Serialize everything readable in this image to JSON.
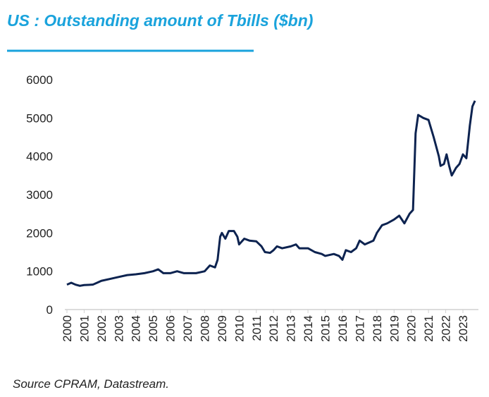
{
  "chart_data": {
    "type": "line",
    "title": "US : Outstanding amount of Tbills ($bn)",
    "source": "Source CPRAM, Datastream.",
    "x": [
      2000,
      2000.25,
      2000.5,
      2000.75,
      2001,
      2001.5,
      2001.75,
      2002,
      2002.5,
      2003,
      2003.5,
      2004,
      2004.5,
      2005,
      2005.3,
      2005.6,
      2006,
      2006.4,
      2006.8,
      2007,
      2007.5,
      2008,
      2008.3,
      2008.6,
      2008.75,
      2008.9,
      2009,
      2009.2,
      2009.4,
      2009.7,
      2009.9,
      2010,
      2010.3,
      2010.6,
      2011,
      2011.3,
      2011.5,
      2011.8,
      2012,
      2012.2,
      2012.5,
      2013,
      2013.3,
      2013.5,
      2014,
      2014.4,
      2014.8,
      2015,
      2015.5,
      2015.8,
      2016,
      2016.2,
      2016.5,
      2016.8,
      2017,
      2017.3,
      2017.8,
      2018,
      2018.3,
      2018.6,
      2019,
      2019.3,
      2019.6,
      2019.9,
      2020.1,
      2020.25,
      2020.4,
      2020.7,
      2021,
      2021.3,
      2021.6,
      2021.7,
      2021.9,
      2022.05,
      2022.2,
      2022.35,
      2022.6,
      2022.8,
      2023,
      2023.2,
      2023.4,
      2023.55,
      2023.7
    ],
    "series": [
      {
        "name": "Outstanding amount of Tbills",
        "color": "#0d2350",
        "values": [
          650,
          700,
          650,
          620,
          640,
          650,
          700,
          750,
          800,
          850,
          900,
          920,
          950,
          1000,
          1050,
          950,
          950,
          1000,
          950,
          950,
          950,
          1000,
          1150,
          1100,
          1300,
          1900,
          2000,
          1850,
          2050,
          2050,
          1900,
          1700,
          1850,
          1800,
          1780,
          1650,
          1500,
          1480,
          1550,
          1650,
          1600,
          1650,
          1700,
          1600,
          1600,
          1500,
          1450,
          1400,
          1450,
          1400,
          1300,
          1550,
          1500,
          1600,
          1800,
          1700,
          1800,
          2000,
          2200,
          2250,
          2350,
          2450,
          2250,
          2500,
          2600,
          4600,
          5080,
          5000,
          4950,
          4500,
          4000,
          3750,
          3800,
          4050,
          3750,
          3500,
          3700,
          3800,
          4050,
          3950,
          4800,
          5300,
          5450
        ]
      }
    ],
    "xlim": [
      2000,
      2023.9
    ],
    "xticks": [
      2000,
      2001,
      2002,
      2003,
      2004,
      2005,
      2006,
      2007,
      2008,
      2009,
      2010,
      2011,
      2012,
      2013,
      2014,
      2015,
      2016,
      2017,
      2018,
      2019,
      2020,
      2021,
      2022,
      2023
    ],
    "ylim": [
      0,
      6000
    ],
    "yticks": [
      0,
      1000,
      2000,
      3000,
      4000,
      5000,
      6000
    ]
  }
}
